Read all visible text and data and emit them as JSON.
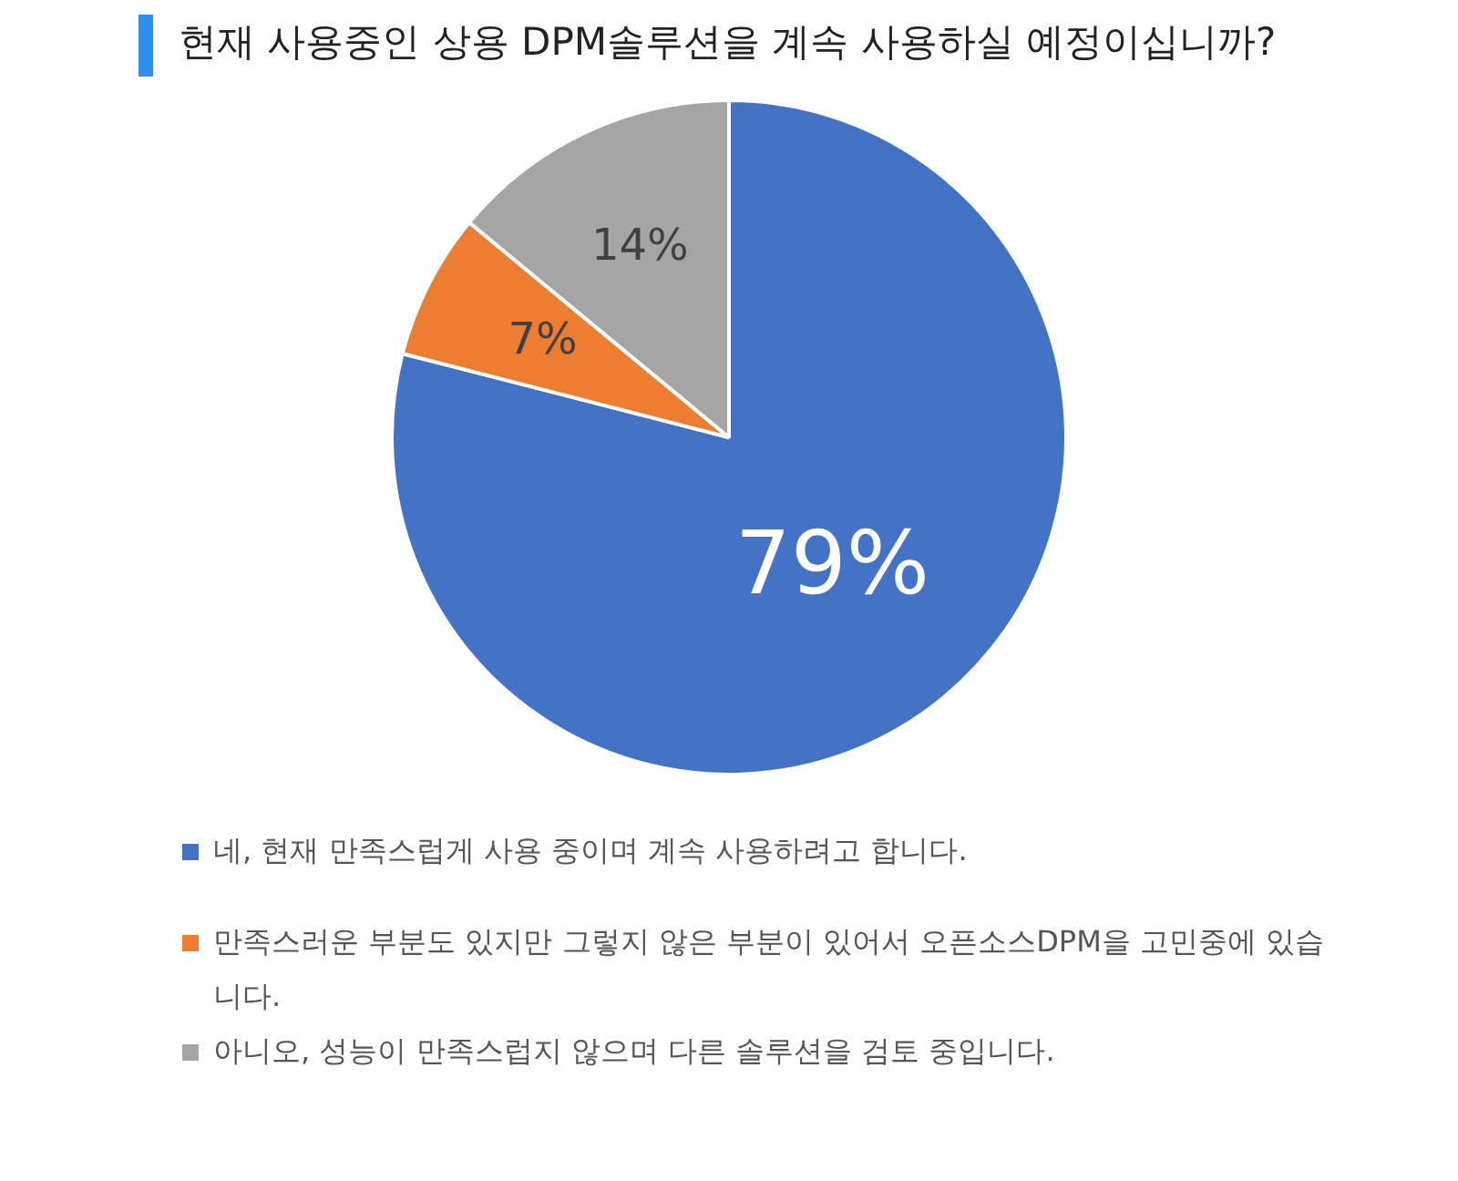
{
  "chart_data": {
    "type": "pie",
    "title": "현재 사용중인 상용 DPM솔루션을 계속 사용하실 예정이십니까?",
    "categories": [
      "네, 현재 만족스럽게 사용 중이며 계속 사용하려고 합니다.",
      "만족스러운 부분도 있지만 그렇지 않은 부분이 있어서 오픈소스DPM을 고민중에 있습니다.",
      "아니오, 성능이 만족스럽지 않으며 다른 솔루션을 검토 중입니다."
    ],
    "values": [
      79,
      7,
      14
    ],
    "colors": [
      "#4472c4",
      "#ed7d31",
      "#a5a5a5"
    ],
    "value_labels": [
      "79%",
      "7%",
      "14%"
    ],
    "legend": "bottom"
  }
}
